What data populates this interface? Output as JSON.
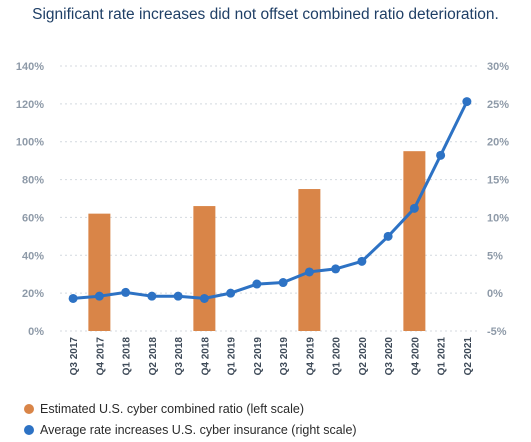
{
  "subtitle": "Significant rate increases did not offset combined ratio deterioration.",
  "colors": {
    "bar": "#d98548",
    "line": "#2d72c4",
    "axis_text": "#8e9aa8",
    "grid": "#d4d9df"
  },
  "chart_data": {
    "type": "bar",
    "categories": [
      "Q3 2017",
      "Q4 2017",
      "Q1 2018",
      "Q2 2018",
      "Q3 2018",
      "Q4 2018",
      "Q1 2019",
      "Q2 2019",
      "Q3 2019",
      "Q4 2019",
      "Q1 2020",
      "Q2 2020",
      "Q3 2020",
      "Q4 2020",
      "Q1 2021",
      "Q2 2021"
    ],
    "left_axis": {
      "ticks": [
        "0%",
        "20%",
        "40%",
        "60%",
        "80%",
        "100%",
        "120%",
        "140%"
      ],
      "ylim": [
        0,
        140
      ]
    },
    "right_axis": {
      "ticks": [
        "-5%",
        "0%",
        "5%",
        "10%",
        "15%",
        "20%",
        "25%",
        "30%"
      ],
      "ylim": [
        -5,
        30
      ]
    },
    "grid": true,
    "legend_position": "bottom-left",
    "series": [
      {
        "name": "Estimated U.S. cyber combined ratio (left scale)",
        "type": "bar",
        "axis": "left",
        "values": [
          null,
          62,
          null,
          null,
          null,
          66,
          null,
          null,
          null,
          75,
          null,
          null,
          null,
          95,
          null,
          null
        ]
      },
      {
        "name": "Average rate increases U.S. cyber insurance (right scale)",
        "type": "line",
        "axis": "right",
        "values": [
          -0.7,
          -0.4,
          0.1,
          -0.4,
          -0.4,
          -0.7,
          0.0,
          1.2,
          1.4,
          2.8,
          3.2,
          4.2,
          7.5,
          11.2,
          18.2,
          25.3
        ]
      }
    ]
  }
}
